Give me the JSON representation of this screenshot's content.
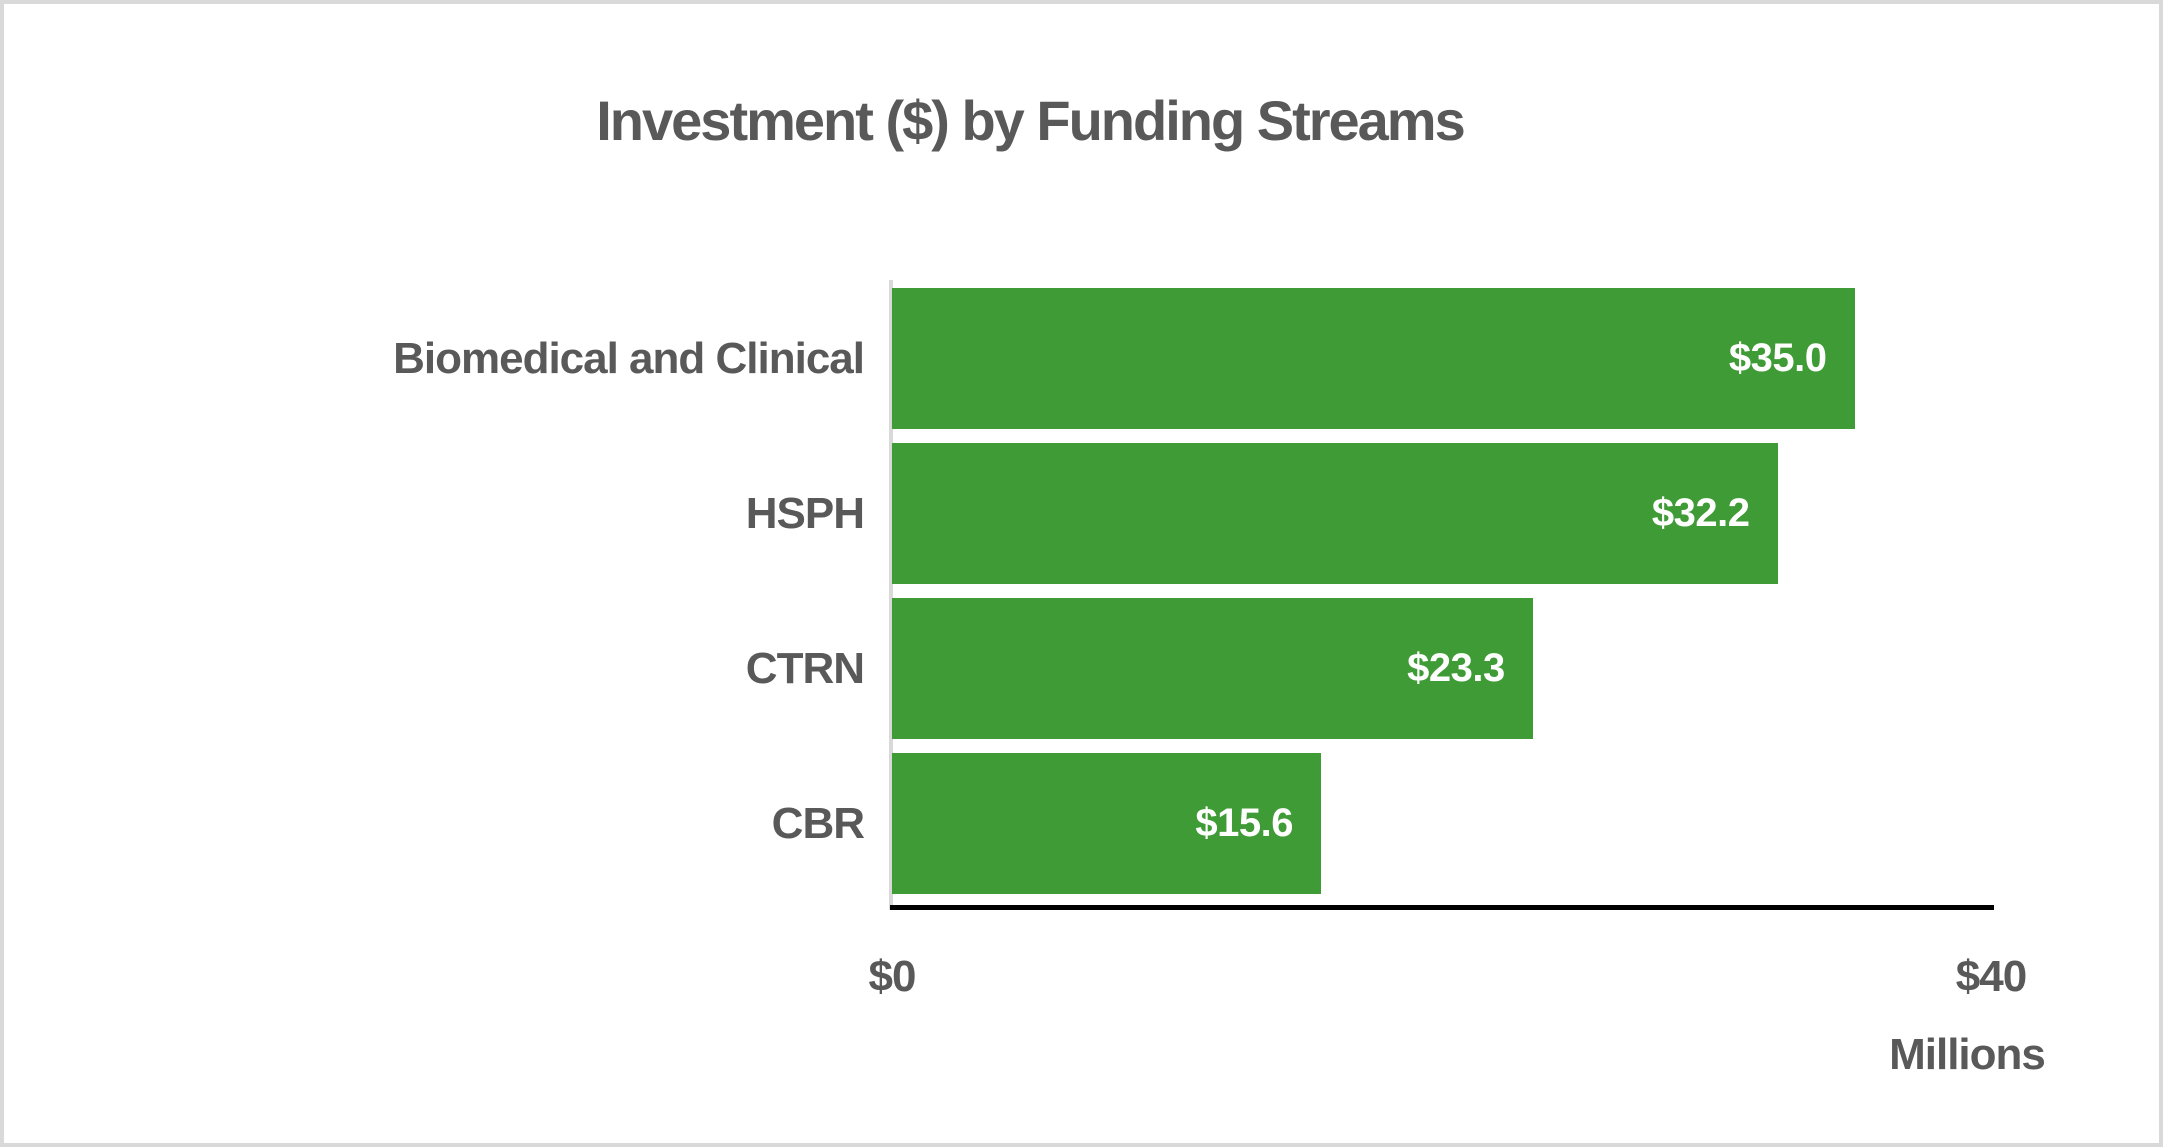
{
  "frame": {
    "border_color": "#D9D9D9",
    "background": "#FFFFFF"
  },
  "chart_data": {
    "type": "bar",
    "orientation": "horizontal",
    "title": "Investment ($) by Funding Streams",
    "categories": [
      "Biomedical and Clinical",
      "HSPH",
      "CTRN",
      "CBR"
    ],
    "values": [
      35.0,
      32.2,
      23.3,
      15.6
    ],
    "value_labels": [
      "$35.0",
      "$32.2",
      "$23.3",
      "$15.6"
    ],
    "xlim": [
      0,
      40
    ],
    "x_ticks": [
      {
        "value": 0,
        "label": "$0"
      },
      {
        "value": 40,
        "label": "$40"
      }
    ],
    "xlabel": "Millions",
    "ylabel": "",
    "grid": false,
    "legend": false,
    "bar_color": "#3F9B35",
    "value_label_color": "#FFFFFF",
    "text_color": "#595959",
    "axis_line_color": "#000000",
    "zero_line_color": "#D9D9D9"
  }
}
